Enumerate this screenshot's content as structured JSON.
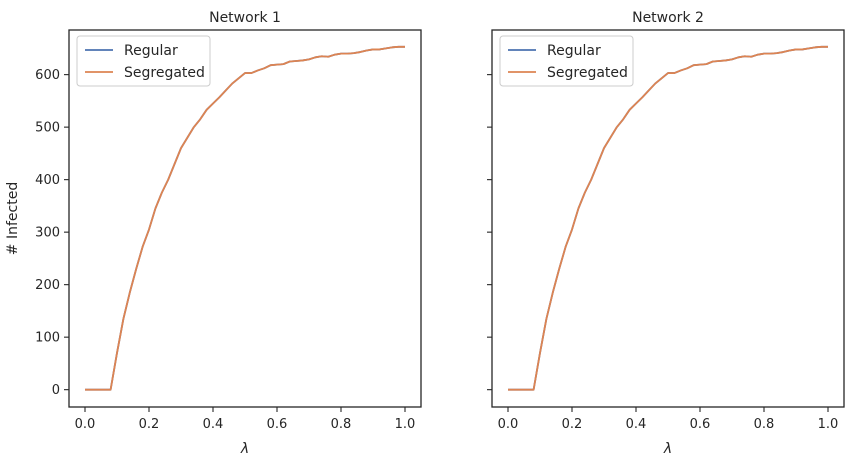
{
  "chart_data": [
    {
      "type": "line",
      "title": "Network 1",
      "xlabel": "λ",
      "ylabel": "# Infected",
      "xlim": [
        -0.05,
        1.05
      ],
      "ylim": [
        -33,
        685
      ],
      "xticks": [
        0.0,
        0.2,
        0.4,
        0.6,
        0.8,
        1.0
      ],
      "xtick_labels": [
        "0.0",
        "0.2",
        "0.4",
        "0.6",
        "0.8",
        "1.0"
      ],
      "yticks": [
        0,
        100,
        200,
        300,
        400,
        500,
        600
      ],
      "ytick_labels": [
        "0",
        "100",
        "200",
        "300",
        "400",
        "500",
        "600"
      ],
      "legend_position": "top-left",
      "grid": false,
      "x": [
        0.0,
        0.02,
        0.04,
        0.06,
        0.08,
        0.1,
        0.12,
        0.14,
        0.16,
        0.18,
        0.2,
        0.22,
        0.24,
        0.26,
        0.28,
        0.3,
        0.32,
        0.34,
        0.36,
        0.38,
        0.4,
        0.42,
        0.44,
        0.46,
        0.48,
        0.5,
        0.52,
        0.54,
        0.56,
        0.58,
        0.6,
        0.62,
        0.64,
        0.66,
        0.68,
        0.7,
        0.72,
        0.74,
        0.76,
        0.78,
        0.8,
        0.82,
        0.84,
        0.86,
        0.88,
        0.9,
        0.92,
        0.94,
        0.96,
        0.98,
        1.0
      ],
      "series": [
        {
          "name": "Regular",
          "color": "#4c72b0",
          "values": [
            0,
            0,
            0,
            0,
            0,
            70,
            135,
            185,
            230,
            272,
            305,
            345,
            375,
            400,
            430,
            460,
            480,
            500,
            515,
            533,
            545,
            557,
            570,
            583,
            593,
            603,
            603,
            608,
            612,
            618,
            619,
            620,
            625,
            626,
            627,
            629,
            633,
            635,
            634,
            638,
            640,
            640,
            641,
            643,
            646,
            648,
            648,
            650,
            652,
            653,
            653
          ]
        },
        {
          "name": "Segregated",
          "color": "#dd8452",
          "values": [
            0,
            0,
            0,
            0,
            0,
            70,
            135,
            185,
            230,
            272,
            305,
            345,
            375,
            400,
            430,
            460,
            480,
            500,
            515,
            533,
            545,
            557,
            570,
            583,
            593,
            603,
            603,
            608,
            612,
            618,
            619,
            620,
            625,
            626,
            627,
            629,
            633,
            635,
            634,
            638,
            640,
            640,
            641,
            643,
            646,
            648,
            648,
            650,
            652,
            653,
            653
          ]
        }
      ]
    },
    {
      "type": "line",
      "title": "Network 2",
      "xlabel": "λ",
      "ylabel": "",
      "xlim": [
        -0.05,
        1.05
      ],
      "ylim": [
        -33,
        685
      ],
      "xticks": [
        0.0,
        0.2,
        0.4,
        0.6,
        0.8,
        1.0
      ],
      "xtick_labels": [
        "0.0",
        "0.2",
        "0.4",
        "0.6",
        "0.8",
        "1.0"
      ],
      "yticks": [
        0,
        100,
        200,
        300,
        400,
        500,
        600
      ],
      "ytick_labels": [],
      "legend_position": "top-left",
      "grid": false,
      "x": [
        0.0,
        0.02,
        0.04,
        0.06,
        0.08,
        0.1,
        0.12,
        0.14,
        0.16,
        0.18,
        0.2,
        0.22,
        0.24,
        0.26,
        0.28,
        0.3,
        0.32,
        0.34,
        0.36,
        0.38,
        0.4,
        0.42,
        0.44,
        0.46,
        0.48,
        0.5,
        0.52,
        0.54,
        0.56,
        0.58,
        0.6,
        0.62,
        0.64,
        0.66,
        0.68,
        0.7,
        0.72,
        0.74,
        0.76,
        0.78,
        0.8,
        0.82,
        0.84,
        0.86,
        0.88,
        0.9,
        0.92,
        0.94,
        0.96,
        0.98,
        1.0
      ],
      "series": [
        {
          "name": "Regular",
          "color": "#4c72b0",
          "values": [
            0,
            0,
            0,
            0,
            0,
            70,
            135,
            185,
            230,
            272,
            305,
            345,
            375,
            400,
            430,
            460,
            480,
            500,
            515,
            533,
            545,
            557,
            570,
            583,
            593,
            603,
            603,
            608,
            612,
            618,
            619,
            620,
            625,
            626,
            627,
            629,
            633,
            635,
            634,
            638,
            640,
            640,
            641,
            643,
            646,
            648,
            648,
            650,
            652,
            653,
            653
          ]
        },
        {
          "name": "Segregated",
          "color": "#dd8452",
          "values": [
            0,
            0,
            0,
            0,
            0,
            70,
            135,
            185,
            230,
            272,
            305,
            345,
            375,
            400,
            430,
            460,
            480,
            500,
            515,
            533,
            545,
            557,
            570,
            583,
            593,
            603,
            603,
            608,
            612,
            618,
            619,
            620,
            625,
            626,
            627,
            629,
            633,
            635,
            634,
            638,
            640,
            640,
            641,
            643,
            646,
            648,
            648,
            650,
            652,
            653,
            653
          ]
        }
      ]
    }
  ]
}
